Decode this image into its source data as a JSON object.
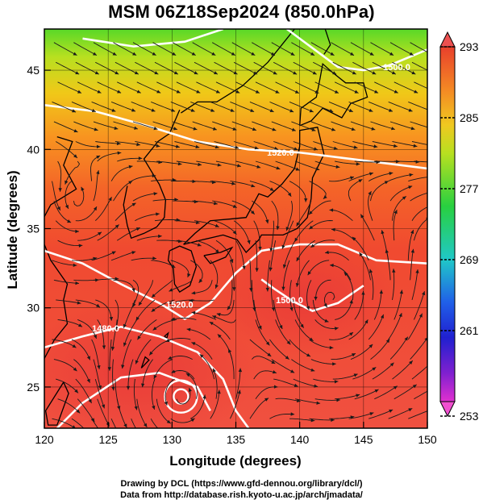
{
  "title": "MSM 06Z18Sep2024 (850.0hPa)",
  "credits": {
    "line1": "Drawing by DCL (https://www.gfd-dennou.org/library/dcl/)",
    "line2": "Data from http://database.rish.kyoto-u.ac.jp/arch/jmadata/"
  },
  "map": {
    "xlabel": "Longitude (degrees)",
    "ylabel": "Latitude  (degrees)",
    "lon_range": [
      120,
      150
    ],
    "lat_range": [
      22.4,
      47.6
    ],
    "lon_ticks": [
      "120",
      "125",
      "130",
      "135",
      "140",
      "145",
      "150"
    ],
    "lat_ticks": [
      "25",
      "30",
      "35",
      "40",
      "45"
    ],
    "contour_labels": [
      {
        "text": "1520.0",
        "lon": 138.5,
        "lat": 39.6
      },
      {
        "text": "1520.0",
        "lon": 130.6,
        "lat": 30.0
      },
      {
        "text": "1500.0",
        "lon": 139.2,
        "lat": 30.3
      },
      {
        "text": "1480.0",
        "lon": 124.8,
        "lat": 28.5
      },
      {
        "text": "1500.0",
        "lon": 147.6,
        "lat": 45.0
      }
    ]
  },
  "colorbar": {
    "ticks": [
      "293",
      "285",
      "277",
      "269",
      "261",
      "253"
    ],
    "min": 253,
    "max": 293
  },
  "colors": {
    "warm": "#f04a30",
    "mid": "#f8a020",
    "cool": "#40d020"
  }
}
